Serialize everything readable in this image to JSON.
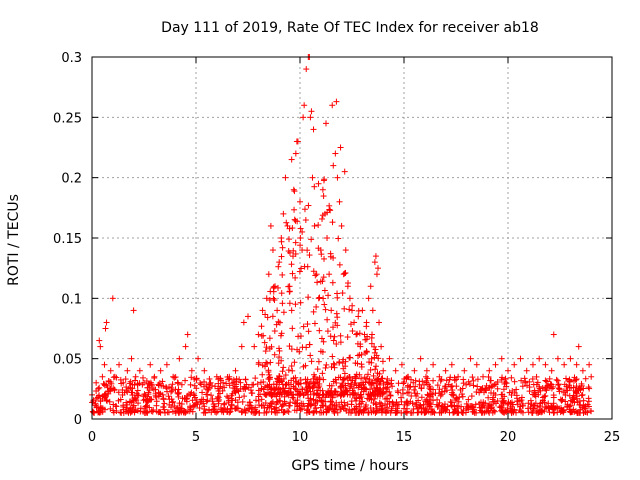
{
  "chart_data": {
    "type": "scatter",
    "title": "Day 111 of 2019, Rate Of TEC Index for receiver ab18",
    "xlabel": "GPS time / hours",
    "ylabel": "ROTI / TECUs",
    "xlim": [
      0,
      25
    ],
    "ylim": [
      0,
      0.3
    ],
    "xticks": [
      "0",
      "5",
      "10",
      "15",
      "20",
      "25"
    ],
    "yticks": [
      "0",
      "0.05",
      "0.1",
      "0.15",
      "0.2",
      "0.25",
      "0.3"
    ],
    "grid": true,
    "marker": "+",
    "color": "#ff0000",
    "series": [
      {
        "name": "ROTI",
        "x": [
          0.0,
          0.2,
          0.3,
          0.4,
          0.5,
          0.6,
          0.7,
          0.9,
          1.1,
          1.3,
          1.5,
          1.7,
          1.9,
          2.1,
          2.3,
          2.5,
          2.8,
          3.0,
          3.3,
          3.6,
          3.9,
          4.2,
          4.5,
          4.8,
          5.1,
          5.4,
          5.7,
          6.0,
          6.3,
          6.6,
          6.9,
          7.2,
          7.5,
          7.8,
          8.0,
          8.2,
          8.4,
          8.5,
          8.6,
          8.7,
          8.8,
          8.9,
          9.0,
          9.1,
          9.2,
          9.3,
          9.4,
          9.5,
          9.6,
          9.7,
          9.8,
          9.9,
          10.0,
          10.1,
          10.2,
          10.3,
          10.4,
          10.5,
          10.6,
          10.7,
          10.8,
          10.9,
          11.0,
          11.1,
          11.2,
          11.3,
          11.4,
          11.5,
          11.6,
          11.7,
          11.8,
          11.9,
          12.0,
          12.1,
          12.2,
          12.3,
          12.4,
          12.5,
          12.6,
          12.7,
          12.8,
          12.9,
          13.0,
          13.1,
          13.2,
          13.3,
          13.4,
          13.5,
          13.6,
          13.7,
          13.8,
          13.9,
          14.0,
          14.3,
          14.6,
          14.9,
          15.2,
          15.5,
          15.8,
          16.1,
          16.4,
          16.7,
          17.0,
          17.3,
          17.6,
          17.9,
          18.2,
          18.5,
          18.8,
          19.1,
          19.4,
          19.7,
          20.0,
          20.3,
          20.6,
          20.9,
          21.2,
          21.5,
          21.8,
          22.1,
          22.4,
          22.7,
          23.0,
          23.3,
          23.6,
          23.9,
          24.0,
          0.35,
          0.65,
          1.0,
          2.0,
          4.6,
          7.3,
          9.6,
          9.85,
          10.15,
          10.45,
          10.55,
          10.65,
          11.25,
          11.55,
          11.75,
          11.95,
          12.15,
          13.65,
          13.75,
          22.2,
          23.4
        ],
        "y": [
          0.02,
          0.03,
          0.025,
          0.06,
          0.035,
          0.045,
          0.08,
          0.04,
          0.035,
          0.045,
          0.03,
          0.04,
          0.05,
          0.035,
          0.04,
          0.03,
          0.045,
          0.035,
          0.04,
          0.045,
          0.035,
          0.05,
          0.06,
          0.04,
          0.05,
          0.04,
          0.03,
          0.035,
          0.03,
          0.035,
          0.04,
          0.06,
          0.085,
          0.06,
          0.07,
          0.09,
          0.1,
          0.12,
          0.16,
          0.14,
          0.11,
          0.09,
          0.13,
          0.15,
          0.17,
          0.2,
          0.16,
          0.11,
          0.09,
          0.19,
          0.22,
          0.23,
          0.18,
          0.14,
          0.26,
          0.29,
          0.3,
          0.25,
          0.2,
          0.16,
          0.12,
          0.1,
          0.14,
          0.19,
          0.17,
          0.15,
          0.12,
          0.09,
          0.21,
          0.22,
          0.2,
          0.18,
          0.16,
          0.12,
          0.14,
          0.11,
          0.1,
          0.09,
          0.08,
          0.07,
          0.085,
          0.06,
          0.09,
          0.07,
          0.08,
          0.1,
          0.11,
          0.09,
          0.13,
          0.12,
          0.08,
          0.06,
          0.04,
          0.05,
          0.04,
          0.045,
          0.035,
          0.04,
          0.05,
          0.04,
          0.045,
          0.035,
          0.04,
          0.045,
          0.035,
          0.04,
          0.05,
          0.045,
          0.035,
          0.04,
          0.045,
          0.05,
          0.04,
          0.045,
          0.05,
          0.04,
          0.045,
          0.05,
          0.045,
          0.04,
          0.05,
          0.045,
          0.05,
          0.045,
          0.04,
          0.045,
          0.035,
          0.065,
          0.075,
          0.1,
          0.09,
          0.07,
          0.08,
          0.215,
          0.23,
          0.25,
          0.3,
          0.255,
          0.24,
          0.245,
          0.26,
          0.263,
          0.225,
          0.205,
          0.135,
          0.125,
          0.07,
          0.06
        ]
      }
    ],
    "baseline": {
      "description": "dense band of low ROTI values",
      "y_min": 0.005,
      "y_max": 0.035
    }
  }
}
